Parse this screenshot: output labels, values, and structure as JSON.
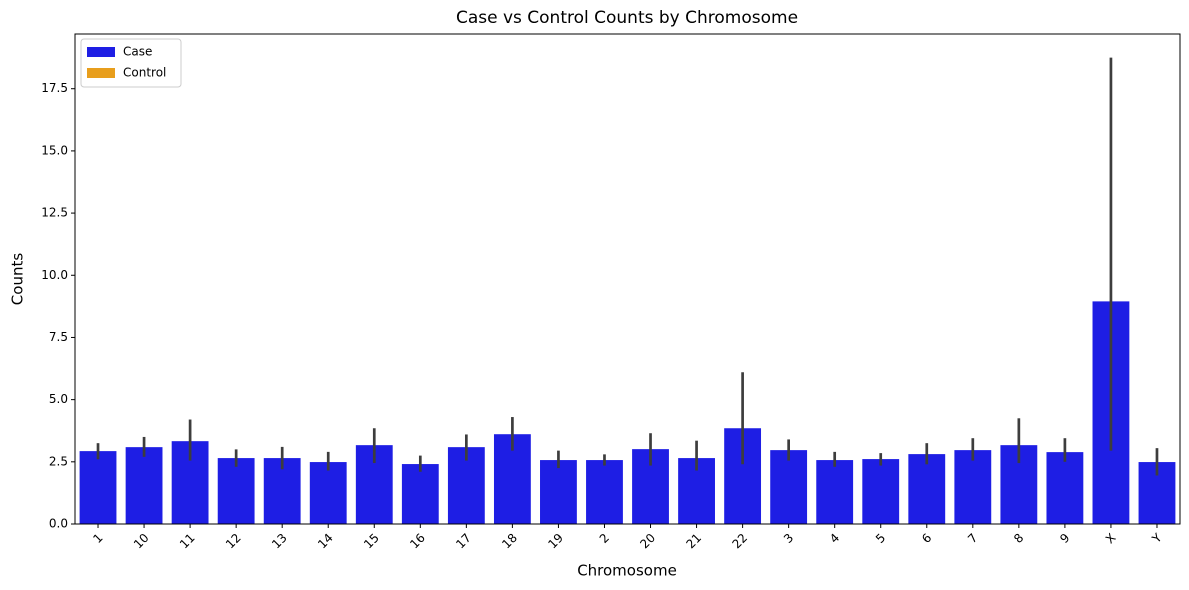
{
  "chart_data": {
    "type": "bar",
    "title": "Case vs Control Counts by Chromosome",
    "xlabel": "Chromosome",
    "ylabel": "Counts",
    "categories": [
      "1",
      "10",
      "11",
      "12",
      "13",
      "14",
      "15",
      "16",
      "17",
      "18",
      "19",
      "2",
      "20",
      "21",
      "22",
      "3",
      "4",
      "5",
      "6",
      "7",
      "8",
      "9",
      "X",
      "Y"
    ],
    "series": [
      {
        "name": "Case",
        "color": "#1e1ee4",
        "values": [
          2.93,
          3.09,
          3.33,
          2.65,
          2.65,
          2.49,
          3.17,
          2.41,
          3.09,
          3.61,
          2.57,
          2.57,
          3.01,
          2.65,
          3.85,
          2.97,
          2.57,
          2.61,
          2.81,
          2.97,
          3.17,
          2.89,
          8.95,
          2.49
        ],
        "ci_low": [
          2.6,
          2.7,
          2.55,
          2.3,
          2.2,
          2.15,
          2.45,
          2.1,
          2.55,
          2.95,
          2.25,
          2.35,
          2.35,
          2.15,
          2.4,
          2.55,
          2.3,
          2.35,
          2.4,
          2.55,
          2.45,
          2.5,
          2.95,
          1.95
        ],
        "ci_high": [
          3.25,
          3.5,
          4.2,
          3.0,
          3.1,
          2.9,
          3.85,
          2.75,
          3.6,
          4.3,
          2.95,
          2.8,
          3.65,
          3.35,
          6.1,
          3.4,
          2.9,
          2.85,
          3.25,
          3.45,
          4.25,
          3.45,
          18.75,
          3.05
        ]
      },
      {
        "name": "Control",
        "color": "#e89e1c"
      }
    ],
    "ylim": [
      0,
      19.7
    ],
    "yticks": [
      {
        "value": 0,
        "label": "0.0"
      },
      2.5,
      {
        "value": 5,
        "label": "5.0"
      },
      7.5,
      {
        "value": 10,
        "label": "10.0"
      },
      12.5,
      {
        "value": 15,
        "label": "15.0"
      },
      17.5
    ],
    "legend": "upper left"
  }
}
